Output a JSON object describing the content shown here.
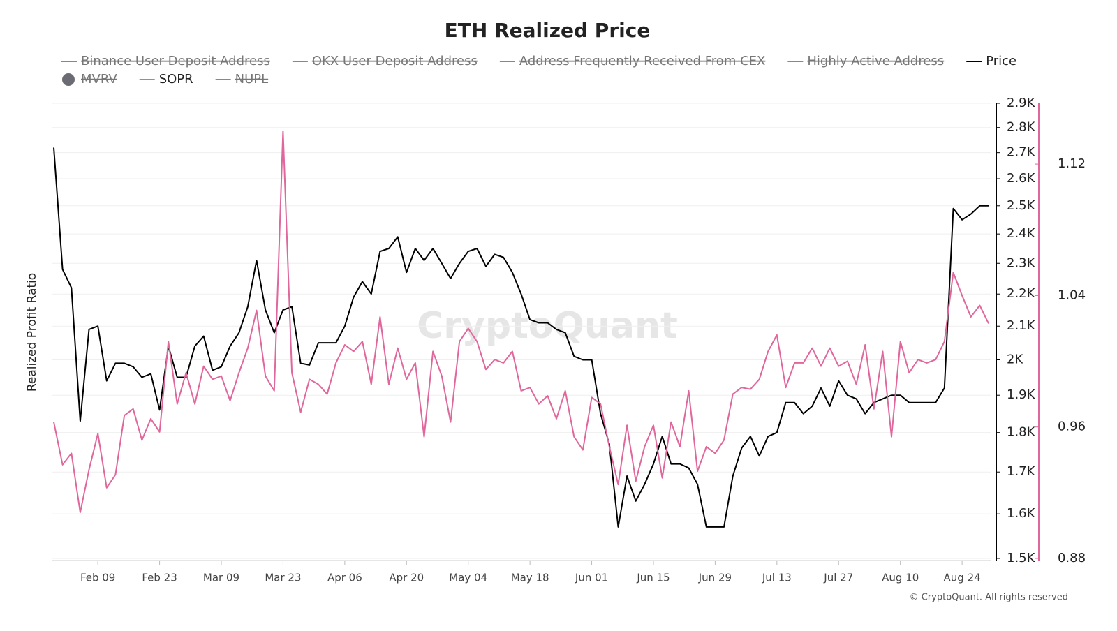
{
  "chart_data": {
    "type": "line",
    "title": "ETH Realized Price",
    "y_label": "Realized Profit Ratio",
    "watermark": "CryptoQuant",
    "footer": "© CryptoQuant. All rights reserved",
    "x": [
      "Jan 30",
      "Feb 01",
      "Feb 03",
      "Feb 05",
      "Feb 07",
      "Feb 09",
      "Feb 11",
      "Feb 13",
      "Feb 15",
      "Feb 17",
      "Feb 19",
      "Feb 21",
      "Feb 23",
      "Feb 25",
      "Feb 27",
      "Mar 01",
      "Mar 03",
      "Mar 05",
      "Mar 07",
      "Mar 09",
      "Mar 11",
      "Mar 13",
      "Mar 15",
      "Mar 17",
      "Mar 19",
      "Mar 21",
      "Mar 23",
      "Mar 25",
      "Mar 27",
      "Mar 29",
      "Mar 31",
      "Apr 02",
      "Apr 04",
      "Apr 06",
      "Apr 08",
      "Apr 10",
      "Apr 12",
      "Apr 14",
      "Apr 16",
      "Apr 18",
      "Apr 20",
      "Apr 22",
      "Apr 24",
      "Apr 26",
      "Apr 28",
      "Apr 30",
      "May 02",
      "May 04",
      "May 06",
      "May 08",
      "May 10",
      "May 12",
      "May 14",
      "May 16",
      "May 18",
      "May 20",
      "May 22",
      "May 24",
      "May 26",
      "May 28",
      "May 30",
      "Jun 01",
      "Jun 03",
      "Jun 05",
      "Jun 07",
      "Jun 09",
      "Jun 11",
      "Jun 13",
      "Jun 15",
      "Jun 17",
      "Jun 19",
      "Jun 21",
      "Jun 23",
      "Jun 25",
      "Jun 27",
      "Jun 29",
      "Jul 01",
      "Jul 03",
      "Jul 05",
      "Jul 07",
      "Jul 09",
      "Jul 11",
      "Jul 13",
      "Jul 15",
      "Jul 17",
      "Jul 19",
      "Jul 21",
      "Jul 23",
      "Jul 25",
      "Jul 27",
      "Jul 29",
      "Jul 31",
      "Aug 02",
      "Aug 04",
      "Aug 06",
      "Aug 08",
      "Aug 10",
      "Aug 12",
      "Aug 14",
      "Aug 16",
      "Aug 18",
      "Aug 20",
      "Aug 22",
      "Aug 24",
      "Aug 26",
      "Aug 28",
      "Aug 30"
    ],
    "xticks": [
      "Feb 09",
      "Feb 23",
      "Mar 09",
      "Mar 23",
      "Apr 06",
      "Apr 20",
      "May 04",
      "May 18",
      "Jun 01",
      "Jun 15",
      "Jun 29",
      "Jul 13",
      "Jul 27",
      "Aug 10",
      "Aug 24"
    ],
    "ylim": [
      1500,
      2900
    ],
    "log_scale": true,
    "yticks": [
      {
        "value": 1500,
        "label": "1.5K"
      },
      {
        "value": 1600,
        "label": "1.6K"
      },
      {
        "value": 1700,
        "label": "1.7K"
      },
      {
        "value": 1800,
        "label": "1.8K"
      },
      {
        "value": 1900,
        "label": "1.9K"
      },
      {
        "value": 2000,
        "label": "2K"
      },
      {
        "value": 2100,
        "label": "2.1K"
      },
      {
        "value": 2200,
        "label": "2.2K"
      },
      {
        "value": 2300,
        "label": "2.3K"
      },
      {
        "value": 2400,
        "label": "2.4K"
      },
      {
        "value": 2500,
        "label": "2.5K"
      },
      {
        "value": 2600,
        "label": "2.6K"
      },
      {
        "value": 2700,
        "label": "2.7K"
      },
      {
        "value": 2800,
        "label": "2.8K"
      },
      {
        "value": 2900,
        "label": "2.9K"
      }
    ],
    "y2lim": [
      0.88,
      1.157
    ],
    "y2ticks": [
      0.88,
      0.96,
      1.04,
      1.12
    ],
    "grid": true,
    "series": [
      {
        "name": "Binance User Deposit Address",
        "color": "#888888",
        "visible": false
      },
      {
        "name": "OKX User Deposit Address",
        "color": "#888888",
        "visible": false
      },
      {
        "name": "Address Frequently Received From CEX",
        "color": "#888888",
        "visible": false
      },
      {
        "name": "Highly Active Address",
        "color": "#888888",
        "visible": false
      },
      {
        "name": "Price",
        "color": "#000000",
        "visible": true,
        "axis": "y",
        "values": [
          2720,
          2280,
          2220,
          1830,
          2090,
          2100,
          1940,
          1990,
          1990,
          1980,
          1950,
          1960,
          1860,
          2040,
          1950,
          1950,
          2040,
          2070,
          1970,
          1980,
          2040,
          2080,
          2160,
          2310,
          2150,
          2080,
          2150,
          2160,
          1990,
          1985,
          2050,
          2050,
          2050,
          2100,
          2190,
          2240,
          2200,
          2340,
          2350,
          2390,
          2270,
          2350,
          2310,
          2350,
          2300,
          2250,
          2300,
          2340,
          2350,
          2290,
          2330,
          2320,
          2270,
          2200,
          2120,
          2110,
          2110,
          2090,
          2080,
          2010,
          2000,
          2000,
          1850,
          1770,
          1570,
          1690,
          1630,
          1670,
          1720,
          1790,
          1720,
          1720,
          1710,
          1670,
          1570,
          1570,
          1570,
          1690,
          1760,
          1790,
          1740,
          1790,
          1800,
          1880,
          1880,
          1850,
          1870,
          1920,
          1870,
          1940,
          1900,
          1890,
          1850,
          1880,
          1890,
          1900,
          1900,
          1880,
          1880,
          1880,
          1880,
          1920,
          2490,
          2450,
          2470,
          2500,
          2500
        ]
      },
      {
        "name": "MVRV",
        "color": "#6b6b73",
        "visible": false,
        "marker": "circle"
      },
      {
        "name": "SOPR",
        "color": "#e0679c",
        "visible": true,
        "axis": "y2",
        "values": [
          0.963,
          0.937,
          0.944,
          0.908,
          0.934,
          0.956,
          0.923,
          0.931,
          0.967,
          0.971,
          0.952,
          0.965,
          0.957,
          1.012,
          0.974,
          0.993,
          0.974,
          0.997,
          0.989,
          0.991,
          0.976,
          0.993,
          1.008,
          1.031,
          0.991,
          0.982,
          1.14,
          0.993,
          0.969,
          0.989,
          0.986,
          0.98,
          0.999,
          1.01,
          1.006,
          1.012,
          0.986,
          1.027,
          0.986,
          1.008,
          0.989,
          0.999,
          0.954,
          1.006,
          0.991,
          0.963,
          1.012,
          1.02,
          1.012,
          0.995,
          1.001,
          0.999,
          1.006,
          0.982,
          0.984,
          0.974,
          0.979,
          0.965,
          0.982,
          0.954,
          0.946,
          0.978,
          0.974,
          0.948,
          0.925,
          0.961,
          0.927,
          0.948,
          0.961,
          0.929,
          0.963,
          0.948,
          0.982,
          0.933,
          0.948,
          0.944,
          0.952,
          0.98,
          0.984,
          0.983,
          0.989,
          1.006,
          1.016,
          0.984,
          0.999,
          0.999,
          1.008,
          0.997,
          1.008,
          0.997,
          1.0,
          0.986,
          1.01,
          0.971,
          1.006,
          0.954,
          1.012,
          0.993,
          1.001,
          0.999,
          1.001,
          1.012,
          1.054,
          1.04,
          1.027,
          1.034,
          1.023
        ]
      },
      {
        "name": "NUPL",
        "color": "#888888",
        "visible": false
      }
    ]
  }
}
